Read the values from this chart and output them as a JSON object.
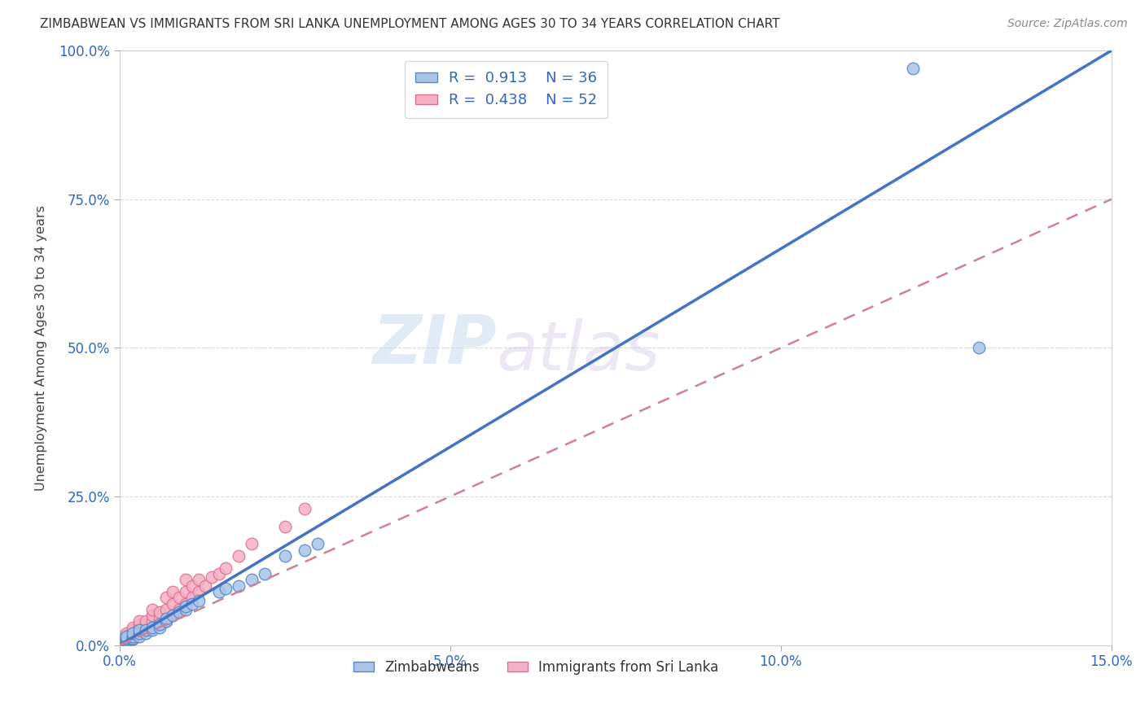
{
  "title": "ZIMBABWEAN VS IMMIGRANTS FROM SRI LANKA UNEMPLOYMENT AMONG AGES 30 TO 34 YEARS CORRELATION CHART",
  "source": "Source: ZipAtlas.com",
  "ylabel": "Unemployment Among Ages 30 to 34 years",
  "xlim": [
    0,
    0.15
  ],
  "ylim": [
    0,
    1.0
  ],
  "xticks": [
    0.0,
    0.05,
    0.1,
    0.15
  ],
  "xtick_labels": [
    "0.0%",
    "5.0%",
    "10.0%",
    "15.0%"
  ],
  "yticks": [
    0.0,
    0.25,
    0.5,
    0.75,
    1.0
  ],
  "ytick_labels": [
    "0.0%",
    "25.0%",
    "50.0%",
    "75.0%",
    "100.0%"
  ],
  "background_color": "#ffffff",
  "grid_color": "#d0d0d0",
  "watermark_zip": "ZIP",
  "watermark_atlas": "atlas",
  "zimbabwe_color": "#aac4e8",
  "srilanka_color": "#f5b0c5",
  "zimbabwe_edge": "#5588cc",
  "srilanka_edge": "#e07090",
  "trendline_blue": "#4472c4",
  "trendline_pink": "#d08090",
  "R_zimbabwe": 0.913,
  "N_zimbabwe": 36,
  "R_srilanka": 0.438,
  "N_srilanka": 52,
  "zim_trend_x0": 0.0,
  "zim_trend_y0": 0.0,
  "zim_trend_x1": 0.15,
  "zim_trend_y1": 1.0,
  "sri_trend_x0": 0.0,
  "sri_trend_y0": 0.0,
  "sri_trend_x1": 0.15,
  "sri_trend_y1": 0.75,
  "zimbabwe_x": [
    0.001,
    0.001,
    0.001,
    0.001,
    0.001,
    0.002,
    0.002,
    0.002,
    0.002,
    0.003,
    0.003,
    0.003,
    0.004,
    0.004,
    0.005,
    0.005,
    0.006,
    0.006,
    0.007,
    0.007,
    0.008,
    0.009,
    0.01,
    0.01,
    0.011,
    0.012,
    0.015,
    0.016,
    0.018,
    0.02,
    0.022,
    0.025,
    0.028,
    0.03,
    0.12,
    0.13
  ],
  "zimbabwe_y": [
    0.005,
    0.008,
    0.01,
    0.012,
    0.015,
    0.01,
    0.012,
    0.015,
    0.02,
    0.015,
    0.02,
    0.025,
    0.02,
    0.025,
    0.025,
    0.03,
    0.03,
    0.035,
    0.04,
    0.045,
    0.05,
    0.055,
    0.06,
    0.065,
    0.07,
    0.075,
    0.09,
    0.095,
    0.1,
    0.11,
    0.12,
    0.15,
    0.16,
    0.17,
    0.97,
    0.5
  ],
  "srilanka_x": [
    0.001,
    0.001,
    0.001,
    0.001,
    0.001,
    0.001,
    0.001,
    0.002,
    0.002,
    0.002,
    0.002,
    0.002,
    0.002,
    0.003,
    0.003,
    0.003,
    0.003,
    0.003,
    0.004,
    0.004,
    0.004,
    0.004,
    0.005,
    0.005,
    0.005,
    0.005,
    0.006,
    0.006,
    0.006,
    0.007,
    0.007,
    0.007,
    0.008,
    0.008,
    0.008,
    0.009,
    0.009,
    0.01,
    0.01,
    0.01,
    0.011,
    0.011,
    0.012,
    0.012,
    0.013,
    0.014,
    0.015,
    0.016,
    0.018,
    0.02,
    0.025,
    0.028
  ],
  "srilanka_y": [
    0.005,
    0.008,
    0.01,
    0.012,
    0.015,
    0.018,
    0.02,
    0.01,
    0.015,
    0.018,
    0.022,
    0.025,
    0.03,
    0.02,
    0.025,
    0.03,
    0.035,
    0.04,
    0.025,
    0.03,
    0.035,
    0.04,
    0.03,
    0.04,
    0.05,
    0.06,
    0.035,
    0.045,
    0.055,
    0.04,
    0.06,
    0.08,
    0.05,
    0.07,
    0.09,
    0.06,
    0.08,
    0.07,
    0.09,
    0.11,
    0.08,
    0.1,
    0.09,
    0.11,
    0.1,
    0.115,
    0.12,
    0.13,
    0.15,
    0.17,
    0.2,
    0.23
  ]
}
